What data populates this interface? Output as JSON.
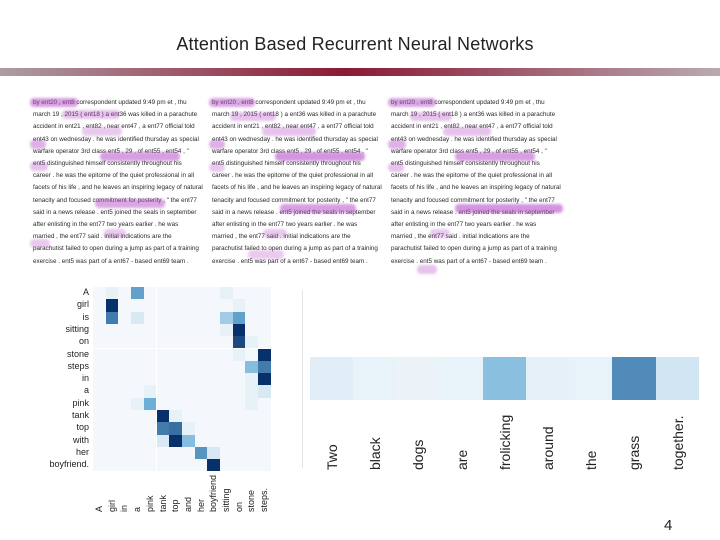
{
  "slide": {
    "title": "Attention Based Recurrent Neural Networks",
    "page_number": "4"
  },
  "text_panels": [
    {
      "lines": [
        "by ent20 , ent8 correspondent updated 9:49 pm et , thu",
        "march 19 , 2015 ( ent18 ) a ent36 was killed in a parachute",
        "accident in ent21 , ent82 , near ent47 , a ent77 official told",
        "ent43 on wednesday . he was identified thursday as special",
        "warfare operator 3rd class ent5 , 29 , of ent55 , ent54 , \"",
        "ent5 distinguished himself consistently throughout his",
        "career . he was the epitome of the quiet professional in all",
        "facets of his life , and he leaves an inspiring legacy of natural",
        "tenacity and focused commitment for posterity , \" the ent77",
        "said in a news release . ent5 joined the seals in september",
        "after enlisting in the ent77 two years earlier . he was",
        "married , the ent77 said . initial indications are the",
        "parachutist failed to open during a jump as part of a training",
        "exercise . ent5 was part of a ent67 - based ent69 team ."
      ]
    },
    {
      "lines": [
        "by ent20 , ent8 correspondent updated 9:49 pm et , thu",
        "march 19 , 2015 ( ent18 ) a ent36 was killed in a parachute",
        "accident in ent21 , ent82 , near ent47 , a ent77 official told",
        "ent43 on wednesday . he was identified thursday as special",
        "warfare operator 3rd class ent5 , 29 , of ent55 , ent54 , \"",
        "ent5 distinguished himself consistently throughout his",
        "career . he was the epitome of the quiet professional in all",
        "facets of his life , and he leaves an inspiring legacy of natural",
        "tenacity and focused commitment for posterity , \" the ent77",
        "said in a news release . ent5 joined the seals in september",
        "after enlisting in the ent77 two years earlier . he was",
        "married , the ent77 said . initial indications are the",
        "parachutist failed to open during a jump as part of a training",
        "exercise . ent5 was part of a ent67 - based ent69 team ."
      ]
    },
    {
      "lines": [
        "by ent20 , ent8 correspondent updated 9:49 pm et , thu",
        "march 19 , 2015 ( ent18 ) a ent36 was killed in a parachute",
        "accident in ent21 , ent82 , near ent47 , a ent77 official told",
        "ent43 on wednesday . he was identified thursday as special",
        "warfare operator 3rd class ent5 , 29 , of ent55 , ent54 , \"",
        "ent5 distinguished himself consistently throughout his",
        "career . he was the epitome of the quiet professional in all",
        "facets of his life , and he leaves an inspiring legacy of natural",
        "tenacity and focused commitment for posterity , \" the ent77",
        "said in a news release . ent5 joined the seals in september",
        "after enlisting in the ent77 two years earlier . he was",
        "married , the ent77 said . initial indications are the",
        "parachutist failed to open during a jump as part of a training",
        "exercise . ent5 was part of a ent67 - based ent69 team ."
      ]
    }
  ],
  "chart_data": [
    {
      "type": "heatmap",
      "row_labels": [
        "A",
        "girl",
        "is",
        "sitting",
        "on",
        "stone",
        "steps",
        "in",
        "a",
        "pink",
        "tank",
        "top",
        "with",
        "her",
        "boyfriend."
      ],
      "col_labels": [
        "A",
        "girl",
        "in",
        "a",
        "pink",
        "tank",
        "top",
        "and",
        "her",
        "boyfriend",
        "sitting",
        "on",
        "stone",
        "steps."
      ],
      "values": [
        [
          0,
          0.05,
          0,
          0.55,
          0,
          0,
          0,
          0,
          0,
          0,
          0.05,
          0,
          0,
          0
        ],
        [
          0,
          1,
          0,
          0,
          0,
          0,
          0,
          0,
          0,
          0,
          0,
          0.05,
          0,
          0
        ],
        [
          0,
          0.7,
          0,
          0.1,
          0,
          0,
          0,
          0,
          0,
          0,
          0.3,
          0.55,
          0,
          0
        ],
        [
          0,
          0,
          0,
          0,
          0,
          0,
          0,
          0,
          0,
          0,
          0.05,
          1,
          0,
          0
        ],
        [
          0,
          0,
          0,
          0,
          0,
          0,
          0,
          0,
          0,
          0,
          0,
          0.9,
          0.05,
          0
        ],
        [
          0,
          0,
          0,
          0,
          0,
          0,
          0,
          0,
          0,
          0,
          0,
          0.05,
          0,
          1
        ],
        [
          0,
          0,
          0,
          0,
          0,
          0,
          0,
          0,
          0,
          0,
          0,
          0,
          0.4,
          0.7
        ],
        [
          0,
          0,
          0,
          0,
          0,
          0,
          0,
          0,
          0,
          0,
          0,
          0,
          0.05,
          1
        ],
        [
          0,
          0,
          0,
          0,
          0.05,
          0,
          0,
          0,
          0,
          0,
          0,
          0,
          0.05,
          0.1
        ],
        [
          0,
          0,
          0,
          0.05,
          0.5,
          0,
          0,
          0,
          0,
          0,
          0,
          0,
          0.05,
          0
        ],
        [
          0,
          0,
          0,
          0,
          0,
          1,
          0.05,
          0,
          0,
          0,
          0,
          0,
          0,
          0
        ],
        [
          0,
          0,
          0,
          0,
          0,
          0.7,
          0.75,
          0.05,
          0,
          0,
          0,
          0,
          0,
          0
        ],
        [
          0,
          0,
          0,
          0,
          0,
          0.1,
          1,
          0.4,
          0,
          0,
          0,
          0,
          0,
          0
        ],
        [
          0,
          0,
          0,
          0,
          0,
          0,
          0,
          0,
          0.6,
          0.1,
          0,
          0,
          0,
          0
        ],
        [
          0,
          0,
          0,
          0,
          0,
          0,
          0,
          0,
          0,
          1,
          0,
          0,
          0,
          0
        ]
      ]
    },
    {
      "type": "heatmap",
      "col_labels": [
        "Two",
        "black",
        "dogs",
        "are",
        "frolicking",
        "around",
        "the",
        "grass",
        "together."
      ],
      "values": [
        0.08,
        0.05,
        0.04,
        0.05,
        0.45,
        0.06,
        0.05,
        0.75,
        0.15
      ]
    }
  ],
  "colors": {
    "heatmap_max": "#08306b",
    "heatmap_min": "#f4f8fc",
    "highlight": "#b650c8",
    "rule_center": "#8a1a34"
  }
}
